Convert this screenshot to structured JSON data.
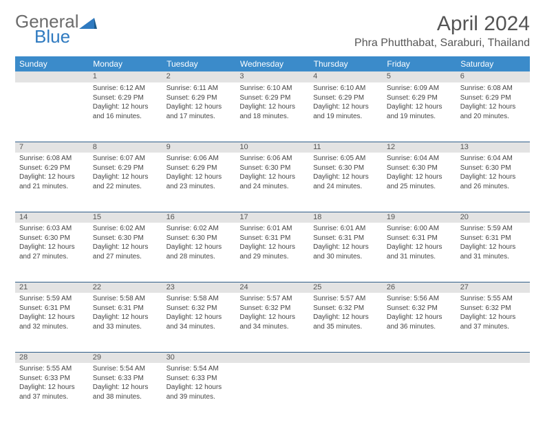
{
  "logo": {
    "text1": "General",
    "text2": "Blue"
  },
  "title": "April 2024",
  "location": "Phra Phutthabat, Saraburi, Thailand",
  "colors": {
    "header_bg": "#3b8bca",
    "header_text": "#ffffff",
    "daynum_bg": "#e3e3e3",
    "border": "#2d5c88",
    "logo_gray": "#6b6b6b",
    "logo_blue": "#2f7ac0"
  },
  "weekdays": [
    "Sunday",
    "Monday",
    "Tuesday",
    "Wednesday",
    "Thursday",
    "Friday",
    "Saturday"
  ],
  "weeks": [
    {
      "nums": [
        "",
        "1",
        "2",
        "3",
        "4",
        "5",
        "6"
      ],
      "cells": [
        null,
        {
          "sunrise": "Sunrise: 6:12 AM",
          "sunset": "Sunset: 6:29 PM",
          "day1": "Daylight: 12 hours",
          "day2": "and 16 minutes."
        },
        {
          "sunrise": "Sunrise: 6:11 AM",
          "sunset": "Sunset: 6:29 PM",
          "day1": "Daylight: 12 hours",
          "day2": "and 17 minutes."
        },
        {
          "sunrise": "Sunrise: 6:10 AM",
          "sunset": "Sunset: 6:29 PM",
          "day1": "Daylight: 12 hours",
          "day2": "and 18 minutes."
        },
        {
          "sunrise": "Sunrise: 6:10 AM",
          "sunset": "Sunset: 6:29 PM",
          "day1": "Daylight: 12 hours",
          "day2": "and 19 minutes."
        },
        {
          "sunrise": "Sunrise: 6:09 AM",
          "sunset": "Sunset: 6:29 PM",
          "day1": "Daylight: 12 hours",
          "day2": "and 19 minutes."
        },
        {
          "sunrise": "Sunrise: 6:08 AM",
          "sunset": "Sunset: 6:29 PM",
          "day1": "Daylight: 12 hours",
          "day2": "and 20 minutes."
        }
      ]
    },
    {
      "nums": [
        "7",
        "8",
        "9",
        "10",
        "11",
        "12",
        "13"
      ],
      "cells": [
        {
          "sunrise": "Sunrise: 6:08 AM",
          "sunset": "Sunset: 6:29 PM",
          "day1": "Daylight: 12 hours",
          "day2": "and 21 minutes."
        },
        {
          "sunrise": "Sunrise: 6:07 AM",
          "sunset": "Sunset: 6:29 PM",
          "day1": "Daylight: 12 hours",
          "day2": "and 22 minutes."
        },
        {
          "sunrise": "Sunrise: 6:06 AM",
          "sunset": "Sunset: 6:29 PM",
          "day1": "Daylight: 12 hours",
          "day2": "and 23 minutes."
        },
        {
          "sunrise": "Sunrise: 6:06 AM",
          "sunset": "Sunset: 6:30 PM",
          "day1": "Daylight: 12 hours",
          "day2": "and 24 minutes."
        },
        {
          "sunrise": "Sunrise: 6:05 AM",
          "sunset": "Sunset: 6:30 PM",
          "day1": "Daylight: 12 hours",
          "day2": "and 24 minutes."
        },
        {
          "sunrise": "Sunrise: 6:04 AM",
          "sunset": "Sunset: 6:30 PM",
          "day1": "Daylight: 12 hours",
          "day2": "and 25 minutes."
        },
        {
          "sunrise": "Sunrise: 6:04 AM",
          "sunset": "Sunset: 6:30 PM",
          "day1": "Daylight: 12 hours",
          "day2": "and 26 minutes."
        }
      ]
    },
    {
      "nums": [
        "14",
        "15",
        "16",
        "17",
        "18",
        "19",
        "20"
      ],
      "cells": [
        {
          "sunrise": "Sunrise: 6:03 AM",
          "sunset": "Sunset: 6:30 PM",
          "day1": "Daylight: 12 hours",
          "day2": "and 27 minutes."
        },
        {
          "sunrise": "Sunrise: 6:02 AM",
          "sunset": "Sunset: 6:30 PM",
          "day1": "Daylight: 12 hours",
          "day2": "and 27 minutes."
        },
        {
          "sunrise": "Sunrise: 6:02 AM",
          "sunset": "Sunset: 6:30 PM",
          "day1": "Daylight: 12 hours",
          "day2": "and 28 minutes."
        },
        {
          "sunrise": "Sunrise: 6:01 AM",
          "sunset": "Sunset: 6:31 PM",
          "day1": "Daylight: 12 hours",
          "day2": "and 29 minutes."
        },
        {
          "sunrise": "Sunrise: 6:01 AM",
          "sunset": "Sunset: 6:31 PM",
          "day1": "Daylight: 12 hours",
          "day2": "and 30 minutes."
        },
        {
          "sunrise": "Sunrise: 6:00 AM",
          "sunset": "Sunset: 6:31 PM",
          "day1": "Daylight: 12 hours",
          "day2": "and 31 minutes."
        },
        {
          "sunrise": "Sunrise: 5:59 AM",
          "sunset": "Sunset: 6:31 PM",
          "day1": "Daylight: 12 hours",
          "day2": "and 31 minutes."
        }
      ]
    },
    {
      "nums": [
        "21",
        "22",
        "23",
        "24",
        "25",
        "26",
        "27"
      ],
      "cells": [
        {
          "sunrise": "Sunrise: 5:59 AM",
          "sunset": "Sunset: 6:31 PM",
          "day1": "Daylight: 12 hours",
          "day2": "and 32 minutes."
        },
        {
          "sunrise": "Sunrise: 5:58 AM",
          "sunset": "Sunset: 6:31 PM",
          "day1": "Daylight: 12 hours",
          "day2": "and 33 minutes."
        },
        {
          "sunrise": "Sunrise: 5:58 AM",
          "sunset": "Sunset: 6:32 PM",
          "day1": "Daylight: 12 hours",
          "day2": "and 34 minutes."
        },
        {
          "sunrise": "Sunrise: 5:57 AM",
          "sunset": "Sunset: 6:32 PM",
          "day1": "Daylight: 12 hours",
          "day2": "and 34 minutes."
        },
        {
          "sunrise": "Sunrise: 5:57 AM",
          "sunset": "Sunset: 6:32 PM",
          "day1": "Daylight: 12 hours",
          "day2": "and 35 minutes."
        },
        {
          "sunrise": "Sunrise: 5:56 AM",
          "sunset": "Sunset: 6:32 PM",
          "day1": "Daylight: 12 hours",
          "day2": "and 36 minutes."
        },
        {
          "sunrise": "Sunrise: 5:55 AM",
          "sunset": "Sunset: 6:32 PM",
          "day1": "Daylight: 12 hours",
          "day2": "and 37 minutes."
        }
      ]
    },
    {
      "nums": [
        "28",
        "29",
        "30",
        "",
        "",
        "",
        ""
      ],
      "cells": [
        {
          "sunrise": "Sunrise: 5:55 AM",
          "sunset": "Sunset: 6:33 PM",
          "day1": "Daylight: 12 hours",
          "day2": "and 37 minutes."
        },
        {
          "sunrise": "Sunrise: 5:54 AM",
          "sunset": "Sunset: 6:33 PM",
          "day1": "Daylight: 12 hours",
          "day2": "and 38 minutes."
        },
        {
          "sunrise": "Sunrise: 5:54 AM",
          "sunset": "Sunset: 6:33 PM",
          "day1": "Daylight: 12 hours",
          "day2": "and 39 minutes."
        },
        null,
        null,
        null,
        null
      ]
    }
  ]
}
